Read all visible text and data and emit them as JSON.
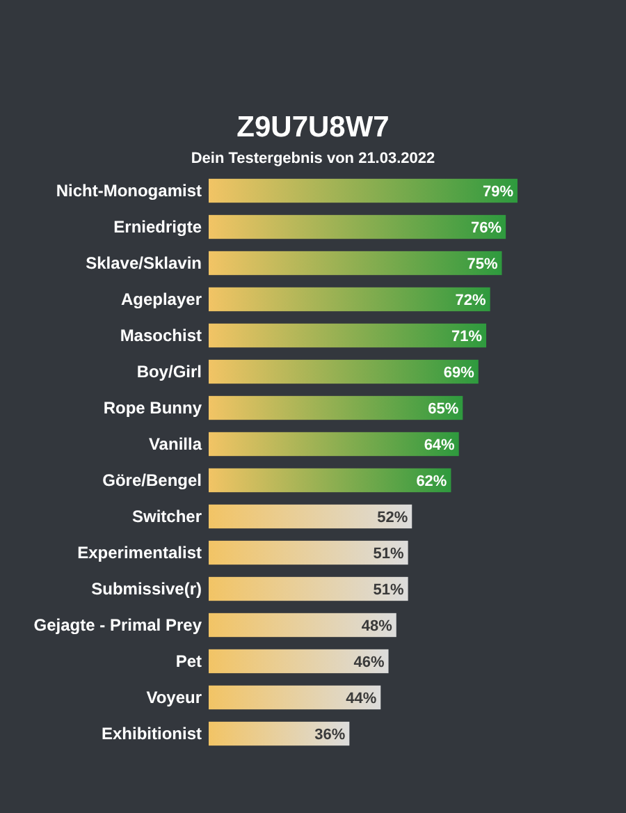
{
  "chart_data": {
    "type": "bar",
    "orientation": "horizontal",
    "title": "Z9U7U8W7",
    "subtitle": "Dein Testergebnis von 21.03.2022",
    "categories": [
      "Nicht-Monogamist",
      "Erniedrigte",
      "Sklave/Sklavin",
      "Ageplayer",
      "Masochist",
      "Boy/Girl",
      "Rope Bunny",
      "Vanilla",
      "Göre/Bengel",
      "Switcher",
      "Experimentalist",
      "Submissive(r)",
      "Gejagte - Primal Prey",
      "Pet",
      "Voyeur",
      "Exhibitionist"
    ],
    "values": [
      79,
      76,
      75,
      72,
      71,
      69,
      65,
      64,
      62,
      52,
      51,
      51,
      48,
      46,
      44,
      36
    ],
    "value_labels": [
      "79%",
      "76%",
      "75%",
      "72%",
      "71%",
      "69%",
      "65%",
      "64%",
      "62%",
      "52%",
      "51%",
      "51%",
      "48%",
      "46%",
      "44%",
      "36%"
    ],
    "colors": [
      "#2e9a3e",
      "#2e9a3e",
      "#2e9a3e",
      "#2e9a3e",
      "#2e9a3e",
      "#2e9a3e",
      "#2e9a3e",
      "#2e9a3e",
      "#2e9a3e",
      "#dcdcdc",
      "#dcdcdc",
      "#dcdcdc",
      "#dcdcdc",
      "#dcdcdc",
      "#dcdcdc",
      "#dcdcdc"
    ]
  }
}
